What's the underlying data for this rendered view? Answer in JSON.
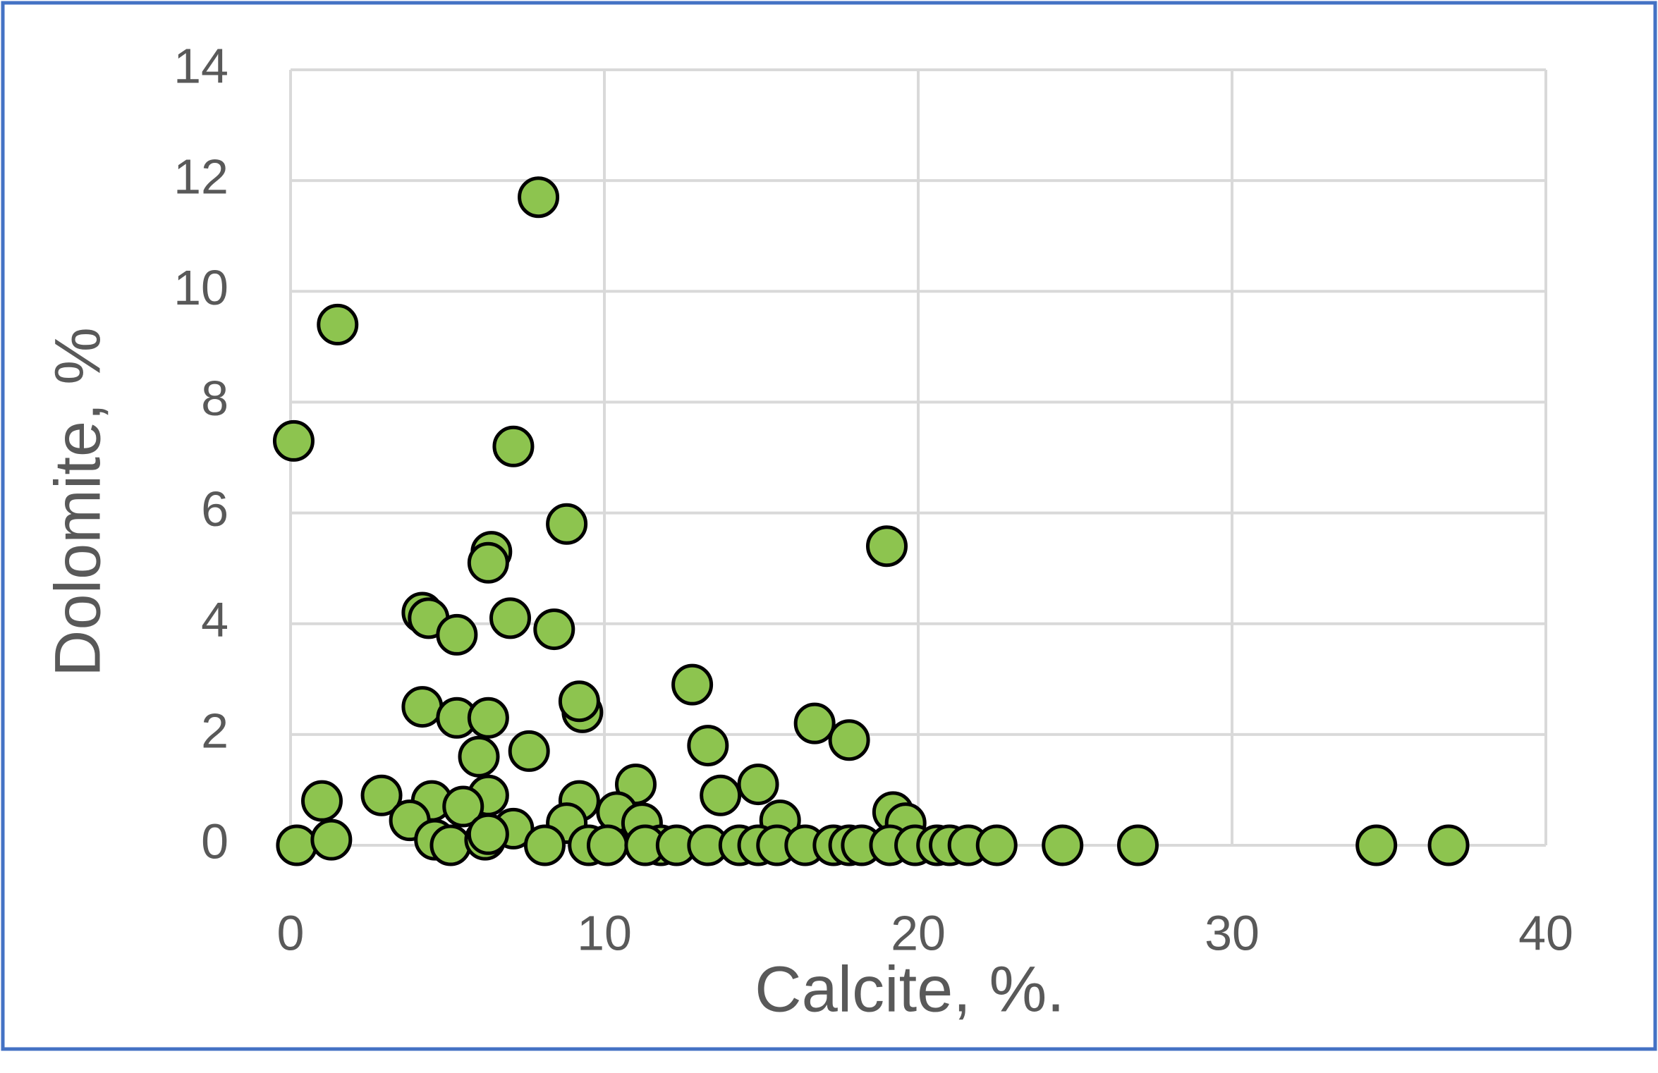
{
  "chart_data": {
    "type": "scatter",
    "x_label": "Calcite, %.",
    "y_label": "Dolomite, %",
    "color": "#8dc44f",
    "x": [
      0.1,
      1.5,
      7.9,
      7.1,
      8.8,
      19,
      6.4,
      6.3,
      4.2,
      4.4,
      7,
      5.3,
      8.4,
      12.8,
      9.3,
      9.2,
      4.2,
      5.3,
      6.3,
      16.7,
      17.8,
      13.3,
      7.6,
      6,
      11,
      14.9,
      13.7,
      2.9,
      1.0,
      6.3,
      4.5,
      9.2,
      5.5,
      10.4,
      19.2,
      15.6,
      19.6,
      3.8,
      8.8,
      7.1,
      11.2,
      0.2,
      1.3,
      4.6,
      5.1,
      6.2,
      6.3,
      8.1,
      9.5,
      10.1,
      11.8,
      11.3,
      12.3,
      13.3,
      14.3,
      14.9,
      15.5,
      16.4,
      17.3,
      17.8,
      18.2,
      19.1,
      19.9,
      20.6,
      21,
      21.6,
      22.5,
      24.6,
      27,
      34.6,
      36.9
    ],
    "values": [
      7.3,
      9.4,
      11.7,
      7.2,
      5.8,
      5.4,
      5.3,
      5.1,
      4.2,
      4.1,
      4.1,
      3.8,
      3.9,
      2.9,
      2.4,
      2.6,
      2.5,
      2.3,
      2.3,
      2.2,
      1.9,
      1.8,
      1.7,
      1.6,
      1.1,
      1.1,
      0.9,
      0.9,
      0.8,
      0.9,
      0.8,
      0.8,
      0.7,
      0.6,
      0.6,
      0.45,
      0.4,
      0.45,
      0.4,
      0.3,
      0.4,
      0,
      0.1,
      0.1,
      0,
      0.1,
      0.2,
      0,
      0,
      0,
      0,
      0,
      0,
      0,
      0,
      0,
      0,
      0,
      0,
      0,
      0,
      0,
      0,
      0,
      0,
      0,
      0,
      0,
      0,
      0,
      0
    ],
    "xlim": [
      0,
      40
    ],
    "xticks": [
      0,
      10,
      20,
      30,
      40
    ],
    "ylim": [
      0,
      14
    ],
    "yticks": [
      0,
      2,
      4,
      6,
      8,
      10,
      12,
      14
    ],
    "grid": true
  }
}
